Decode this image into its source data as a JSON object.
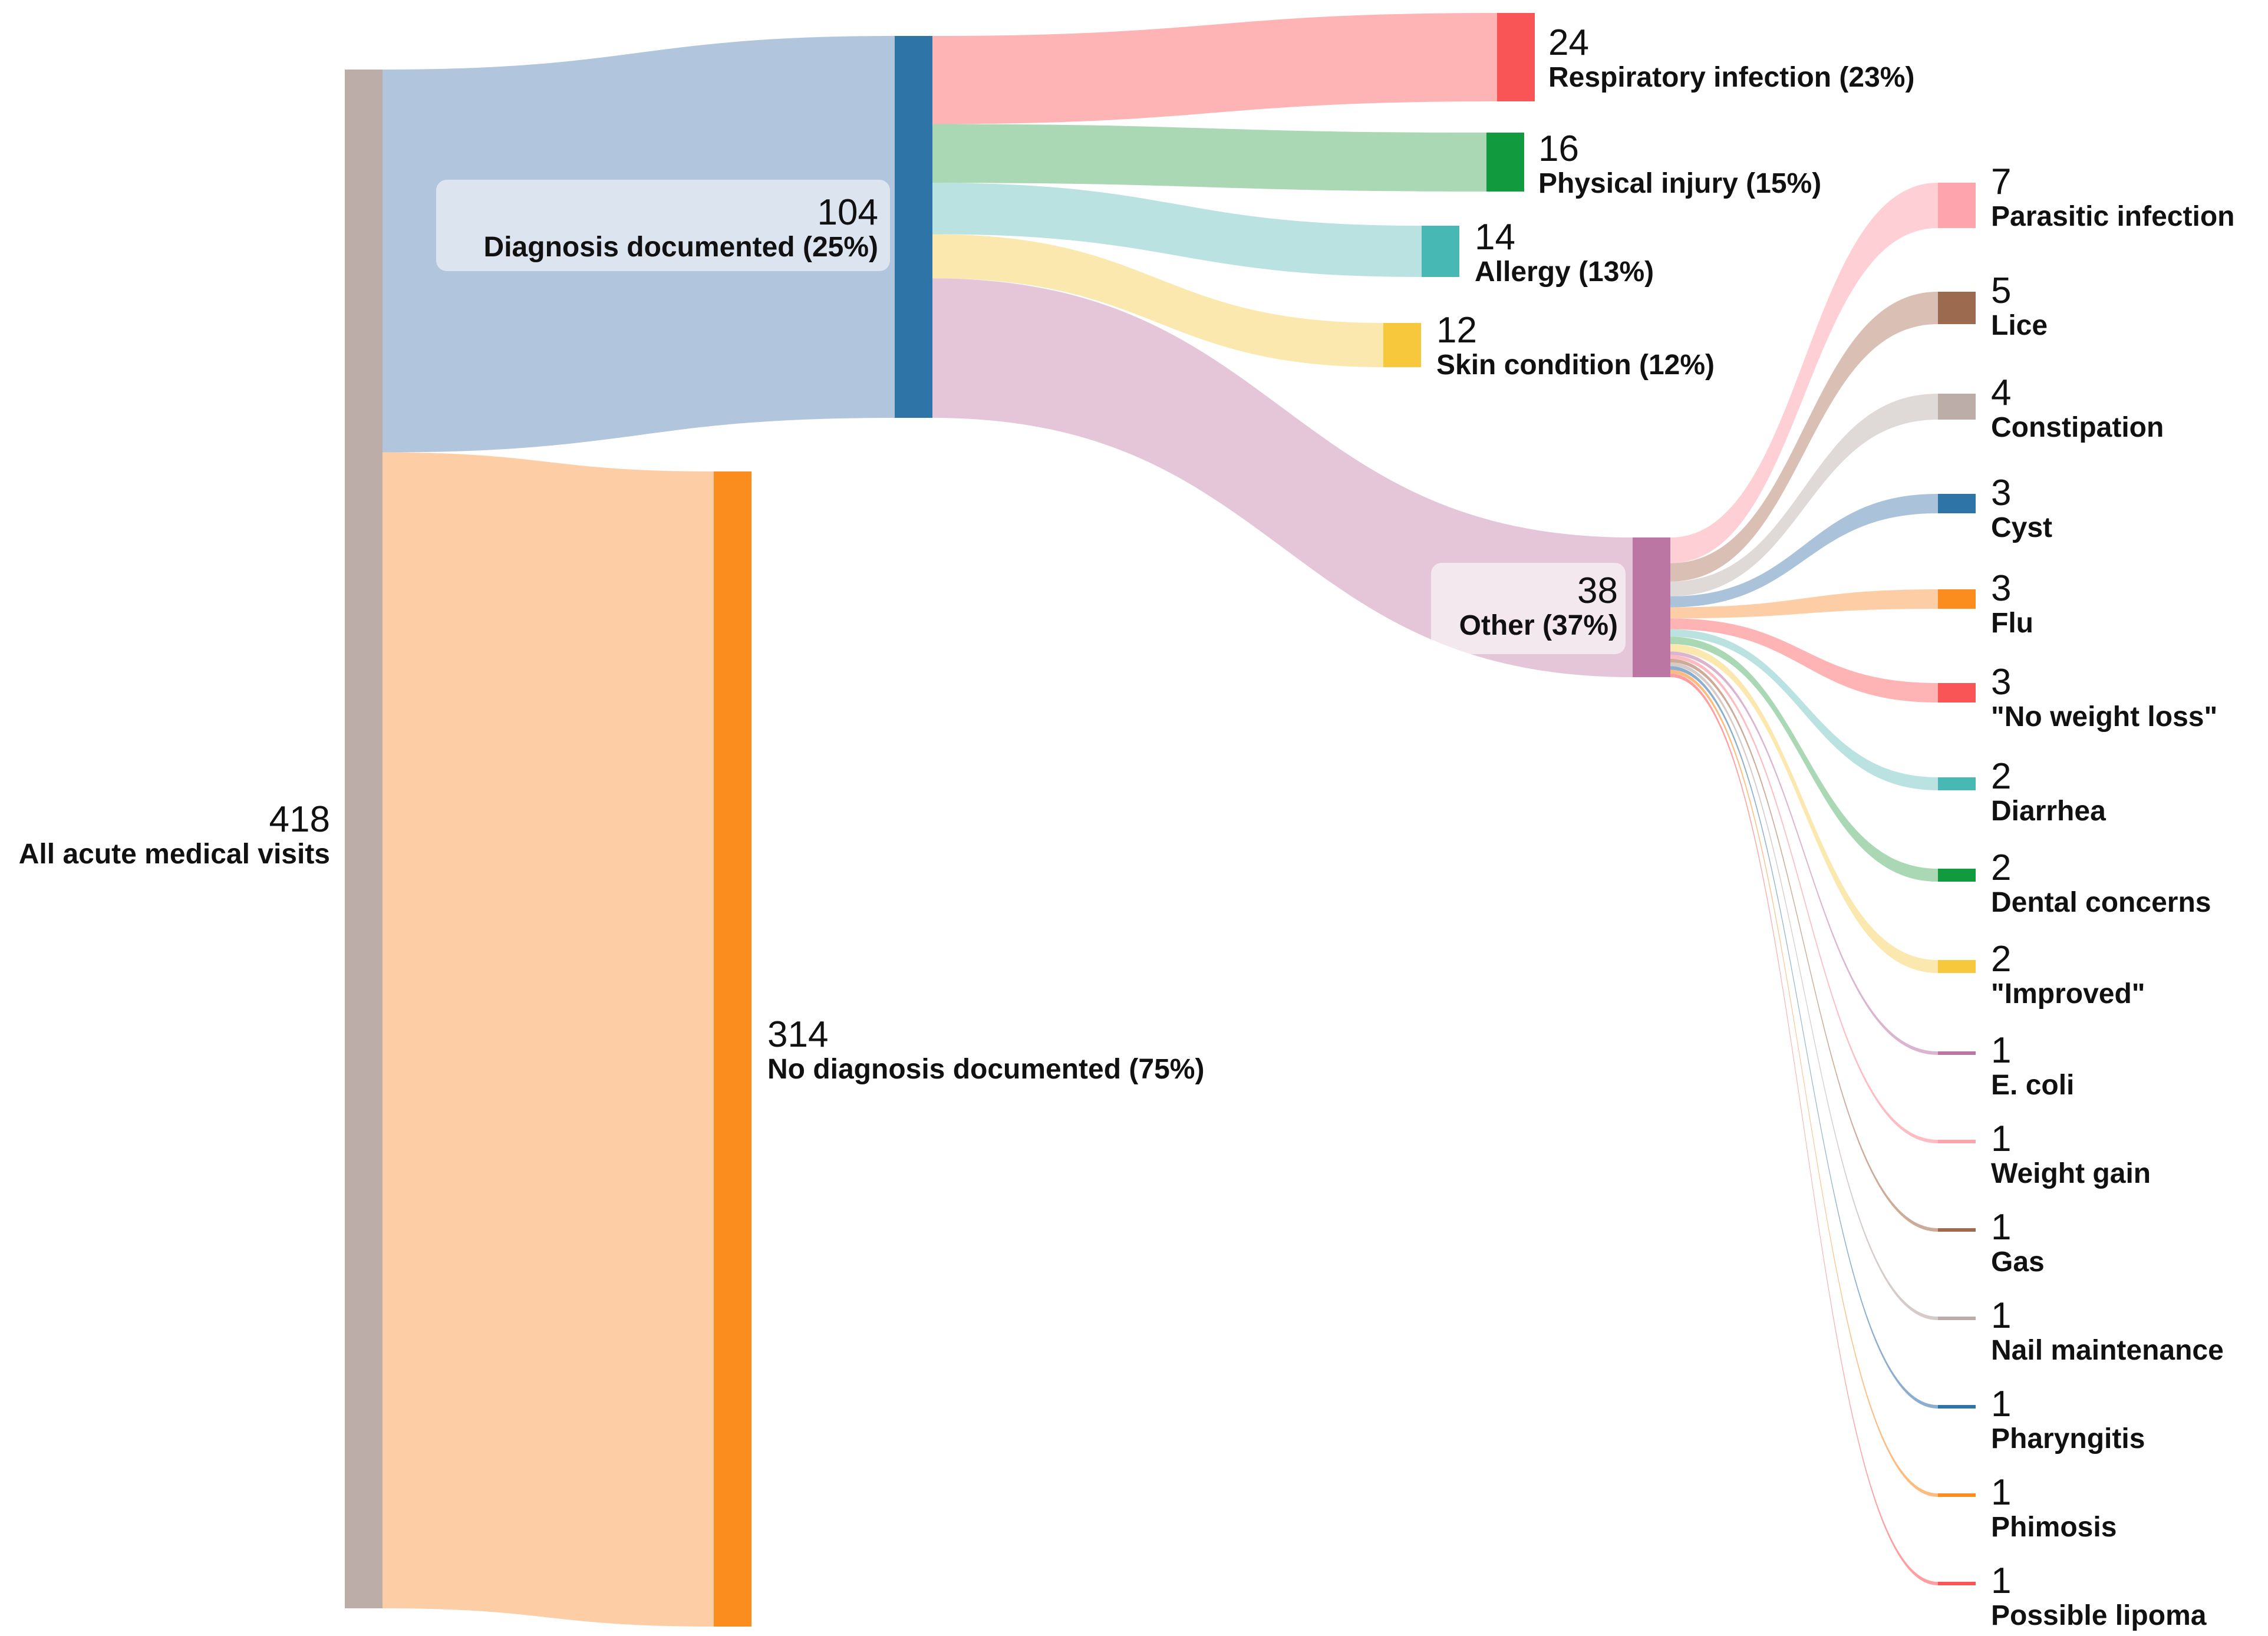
{
  "chart_data": {
    "type": "sankey",
    "title": "",
    "nodes": [
      {
        "id": "all",
        "value": 418,
        "label": "All acute medical visits",
        "color": "#bcada8",
        "link_color": "#bcada8"
      },
      {
        "id": "diag",
        "value": 104,
        "label": "Diagnosis documented (25%)",
        "color": "#2e74a6",
        "link_color": "#adc3da"
      },
      {
        "id": "nodiag",
        "value": 314,
        "label": "No diagnosis documented (75%)",
        "color": "#fb8d1f",
        "link_color": "#fdcba0"
      },
      {
        "id": "resp",
        "value": 24,
        "label": "Respiratory infection (23%)",
        "color": "#fa5556",
        "link_color": "#feb0b1"
      },
      {
        "id": "phys",
        "value": 16,
        "label": "Physical injury (15%)",
        "color": "#119b3e",
        "link_color": "#a7d6b0"
      },
      {
        "id": "allergy",
        "value": 14,
        "label": "Allergy (13%)",
        "color": "#48b8b4",
        "link_color": "#b6e0de"
      },
      {
        "id": "skin",
        "value": 12,
        "label": "Skin condition (12%)",
        "color": "#f7c83b",
        "link_color": "#fbe7ab"
      },
      {
        "id": "other",
        "value": 38,
        "label": "Other (37%)",
        "color": "#bb76a4",
        "link_color": "#e3c3d6"
      },
      {
        "id": "parasitic",
        "value": 7,
        "label": "Parasitic infection",
        "color": "#fda4ad",
        "link_color": "#fecdd3"
      },
      {
        "id": "lice",
        "value": 5,
        "label": "Lice",
        "color": "#9c6b4f",
        "link_color": "#d8bdb0"
      },
      {
        "id": "constipation",
        "value": 4,
        "label": "Constipation",
        "color": "#bcada8",
        "link_color": "#ddd7d5"
      },
      {
        "id": "cyst",
        "value": 3,
        "label": "Cyst",
        "color": "#2e74a6",
        "link_color": "#a6c0d8"
      },
      {
        "id": "flu",
        "value": 3,
        "label": "Flu",
        "color": "#fb8d1f",
        "link_color": "#fdcba0"
      },
      {
        "id": "noweight",
        "value": 3,
        "label": "\"No weight loss\"",
        "color": "#fa5556",
        "link_color": "#feb0b1"
      },
      {
        "id": "diarrhea",
        "value": 2,
        "label": "Diarrhea",
        "color": "#48b8b4",
        "link_color": "#b6e0de"
      },
      {
        "id": "dental",
        "value": 2,
        "label": "Dental concerns",
        "color": "#119b3e",
        "link_color": "#a7d6b0"
      },
      {
        "id": "improved",
        "value": 2,
        "label": "\"Improved\"",
        "color": "#f7c83b",
        "link_color": "#fbe7ab"
      },
      {
        "id": "ecoli",
        "value": 1,
        "label": "E. coli",
        "color": "#bb76a4",
        "link_color": "#d9b1cc"
      },
      {
        "id": "weightgain",
        "value": 1,
        "label": "Weight gain",
        "color": "#fda4ad",
        "link_color": "#fdb7bf"
      },
      {
        "id": "gas",
        "value": 1,
        "label": "Gas",
        "color": "#9c6b4f",
        "link_color": "#c9a694"
      },
      {
        "id": "nail",
        "value": 1,
        "label": "Nail maintenance",
        "color": "#bcada8",
        "link_color": "#d3c8c5"
      },
      {
        "id": "pharyngitis",
        "value": 1,
        "label": "Pharyngitis",
        "color": "#2e74a6",
        "link_color": "#86aacb"
      },
      {
        "id": "phimosis",
        "value": 1,
        "label": "Phimosis",
        "color": "#fb8d1f",
        "link_color": "#fdb877"
      },
      {
        "id": "lipoma",
        "value": 1,
        "label": "Possible lipoma",
        "color": "#fa5556",
        "link_color": "#fd9a9b"
      }
    ],
    "links": [
      {
        "source": "all",
        "target": "diag",
        "value": 104
      },
      {
        "source": "all",
        "target": "nodiag",
        "value": 314
      },
      {
        "source": "diag",
        "target": "resp",
        "value": 24
      },
      {
        "source": "diag",
        "target": "phys",
        "value": 16
      },
      {
        "source": "diag",
        "target": "allergy",
        "value": 14
      },
      {
        "source": "diag",
        "target": "skin",
        "value": 12
      },
      {
        "source": "diag",
        "target": "other",
        "value": 38
      },
      {
        "source": "other",
        "target": "parasitic",
        "value": 7
      },
      {
        "source": "other",
        "target": "lice",
        "value": 5
      },
      {
        "source": "other",
        "target": "constipation",
        "value": 4
      },
      {
        "source": "other",
        "target": "cyst",
        "value": 3
      },
      {
        "source": "other",
        "target": "flu",
        "value": 3
      },
      {
        "source": "other",
        "target": "noweight",
        "value": 3
      },
      {
        "source": "other",
        "target": "diarrhea",
        "value": 2
      },
      {
        "source": "other",
        "target": "dental",
        "value": 2
      },
      {
        "source": "other",
        "target": "improved",
        "value": 2
      },
      {
        "source": "other",
        "target": "ecoli",
        "value": 1
      },
      {
        "source": "other",
        "target": "weightgain",
        "value": 1
      },
      {
        "source": "other",
        "target": "gas",
        "value": 1
      },
      {
        "source": "other",
        "target": "nail",
        "value": 1
      },
      {
        "source": "other",
        "target": "pharyngitis",
        "value": 1
      },
      {
        "source": "other",
        "target": "phimosis",
        "value": 1
      },
      {
        "source": "other",
        "target": "lipoma",
        "value": 1
      }
    ]
  }
}
